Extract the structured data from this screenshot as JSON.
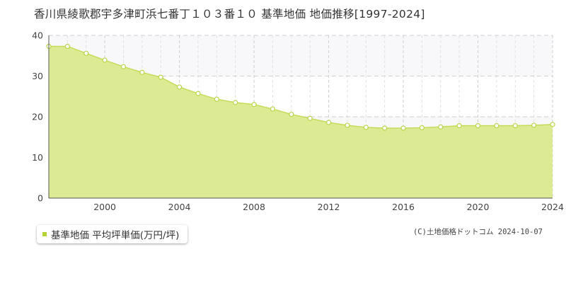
{
  "title": "香川県綾歌郡宇多津町浜七番丁１０３番１０ 基準地価 地価推移[1997-2024]",
  "legend_label": "基準地価 平均坪単価(万円/坪)",
  "copyright": "(C)土地価格ドットコム 2024-10-07",
  "colors": {
    "fill": "#dcea94",
    "line": "#c3dc5a",
    "marker_stroke": "#b9d64a",
    "swatch": "#b5d334",
    "band": "#f8f8fb"
  },
  "chart_data": {
    "type": "area",
    "title": "香川県綾歌郡宇多津町浜七番丁１０３番１０ 基準地価 地価推移[1997-2024]",
    "xlabel": "",
    "ylabel": "",
    "xlim": [
      1997,
      2024
    ],
    "ylim": [
      0,
      40
    ],
    "x_ticks": [
      2000,
      2004,
      2008,
      2012,
      2016,
      2020,
      2024
    ],
    "y_ticks": [
      0,
      10,
      20,
      30,
      40
    ],
    "grid": true,
    "legend_position": "bottom-left",
    "series": [
      {
        "name": "基準地価 平均坪単価(万円/坪)",
        "x": [
          1997,
          1998,
          1999,
          2000,
          2001,
          2002,
          2003,
          2004,
          2005,
          2006,
          2007,
          2008,
          2009,
          2010,
          2011,
          2012,
          2013,
          2014,
          2015,
          2016,
          2017,
          2018,
          2019,
          2020,
          2021,
          2022,
          2023,
          2024
        ],
        "values": [
          37.3,
          37.3,
          35.6,
          33.9,
          32.3,
          30.9,
          29.7,
          27.3,
          25.7,
          24.3,
          23.5,
          23.0,
          21.9,
          20.6,
          19.6,
          18.6,
          17.9,
          17.4,
          17.2,
          17.2,
          17.3,
          17.5,
          17.8,
          17.8,
          17.8,
          17.8,
          17.9,
          18.1
        ]
      }
    ]
  }
}
